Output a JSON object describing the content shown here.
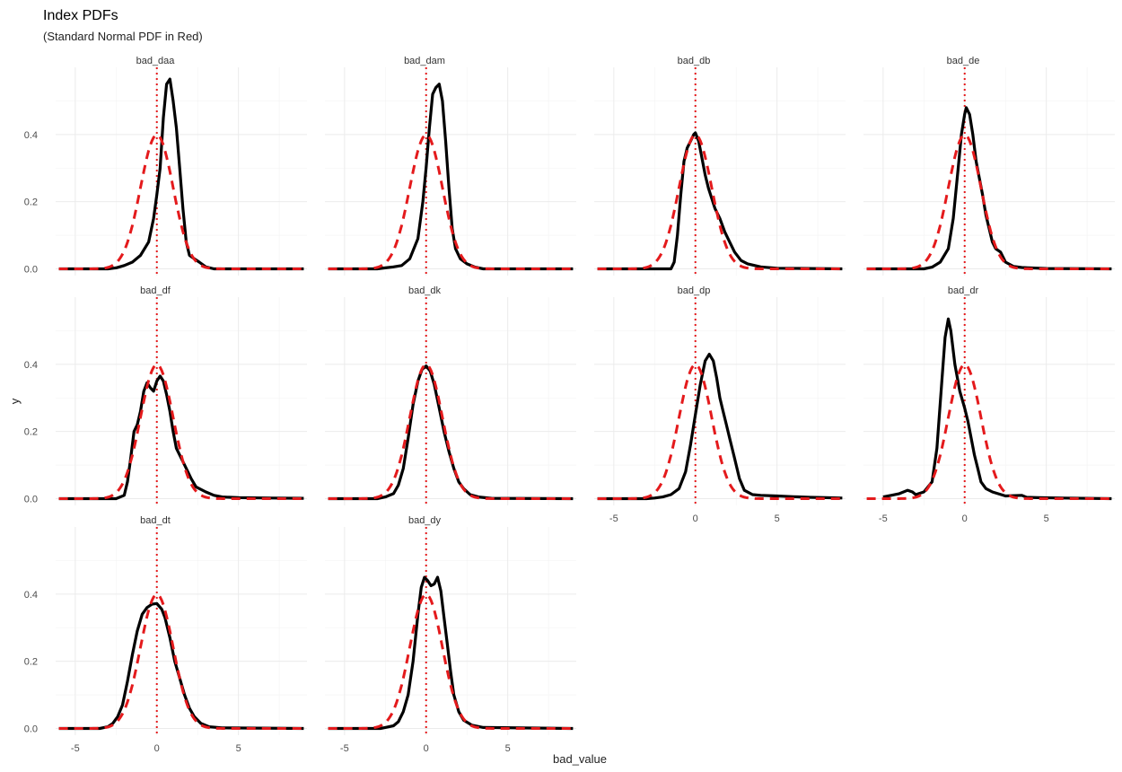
{
  "chart_data": {
    "type": "line",
    "title": "Index PDFs",
    "subtitle": "(Standard Normal PDF in Red)",
    "xlabel": "bad_value",
    "ylabel": "y",
    "xlim": [
      -6.2,
      9.2
    ],
    "ylim": [
      -0.02,
      0.6
    ],
    "x_ticks": [
      -5,
      0,
      5
    ],
    "y_ticks": [
      0.0,
      0.2,
      0.4
    ],
    "y_tick_labels": [
      "0.0",
      "0.2",
      "0.4"
    ],
    "grid": true,
    "reference_line": {
      "x": 0,
      "style": "dotted",
      "color": "#e41a1c"
    },
    "reference_curve": {
      "name": "Standard Normal PDF",
      "color": "#e41a1c",
      "style": "dashed"
    },
    "density_color": "#000000",
    "panels": [
      {
        "label": "bad_daa",
        "points": [
          [
            -6,
            0
          ],
          [
            -3,
            0
          ],
          [
            -2.5,
            0.003
          ],
          [
            -2,
            0.01
          ],
          [
            -1.5,
            0.02
          ],
          [
            -1,
            0.04
          ],
          [
            -0.5,
            0.08
          ],
          [
            -0.2,
            0.15
          ],
          [
            0,
            0.22
          ],
          [
            0.2,
            0.3
          ],
          [
            0.4,
            0.45
          ],
          [
            0.6,
            0.55
          ],
          [
            0.8,
            0.565
          ],
          [
            1.0,
            0.5
          ],
          [
            1.2,
            0.42
          ],
          [
            1.4,
            0.3
          ],
          [
            1.6,
            0.18
          ],
          [
            1.8,
            0.08
          ],
          [
            2.0,
            0.04
          ],
          [
            2.3,
            0.03
          ],
          [
            2.6,
            0.02
          ],
          [
            3,
            0.006
          ],
          [
            3.5,
            0
          ],
          [
            9,
            0
          ]
        ]
      },
      {
        "label": "bad_dam",
        "points": [
          [
            -6,
            0
          ],
          [
            -3,
            0
          ],
          [
            -2.5,
            0.003
          ],
          [
            -2,
            0.006
          ],
          [
            -1.5,
            0.01
          ],
          [
            -1,
            0.03
          ],
          [
            -0.5,
            0.09
          ],
          [
            -0.2,
            0.2
          ],
          [
            0,
            0.3
          ],
          [
            0.2,
            0.42
          ],
          [
            0.4,
            0.52
          ],
          [
            0.6,
            0.54
          ],
          [
            0.8,
            0.55
          ],
          [
            1.0,
            0.5
          ],
          [
            1.2,
            0.38
          ],
          [
            1.4,
            0.24
          ],
          [
            1.6,
            0.12
          ],
          [
            1.8,
            0.06
          ],
          [
            2.1,
            0.03
          ],
          [
            2.5,
            0.015
          ],
          [
            3,
            0.005
          ],
          [
            3.5,
            0
          ],
          [
            9,
            0
          ]
        ]
      },
      {
        "label": "bad_db",
        "points": [
          [
            -6,
            0
          ],
          [
            -1.5,
            0
          ],
          [
            -1.3,
            0.02
          ],
          [
            -1.1,
            0.1
          ],
          [
            -0.9,
            0.22
          ],
          [
            -0.7,
            0.32
          ],
          [
            -0.5,
            0.36
          ],
          [
            -0.3,
            0.38
          ],
          [
            -0.1,
            0.4
          ],
          [
            0,
            0.405
          ],
          [
            0.2,
            0.38
          ],
          [
            0.4,
            0.33
          ],
          [
            0.6,
            0.28
          ],
          [
            0.8,
            0.24
          ],
          [
            1.0,
            0.21
          ],
          [
            1.2,
            0.18
          ],
          [
            1.5,
            0.15
          ],
          [
            1.8,
            0.11
          ],
          [
            2.1,
            0.08
          ],
          [
            2.4,
            0.05
          ],
          [
            2.8,
            0.025
          ],
          [
            3.2,
            0.015
          ],
          [
            4,
            0.006
          ],
          [
            5,
            0.002
          ],
          [
            9,
            0
          ]
        ]
      },
      {
        "label": "bad_de",
        "points": [
          [
            -6,
            0
          ],
          [
            -2.5,
            0
          ],
          [
            -2,
            0.005
          ],
          [
            -1.5,
            0.02
          ],
          [
            -1,
            0.06
          ],
          [
            -0.7,
            0.15
          ],
          [
            -0.4,
            0.3
          ],
          [
            -0.2,
            0.4
          ],
          [
            0,
            0.46
          ],
          [
            0.1,
            0.48
          ],
          [
            0.3,
            0.46
          ],
          [
            0.5,
            0.4
          ],
          [
            0.7,
            0.32
          ],
          [
            0.9,
            0.27
          ],
          [
            1.1,
            0.22
          ],
          [
            1.3,
            0.16
          ],
          [
            1.5,
            0.12
          ],
          [
            1.7,
            0.08
          ],
          [
            1.9,
            0.06
          ],
          [
            2.2,
            0.05
          ],
          [
            2.5,
            0.02
          ],
          [
            3,
            0.007
          ],
          [
            3.5,
            0.004
          ],
          [
            5,
            0.001
          ],
          [
            9,
            0
          ]
        ]
      },
      {
        "label": "bad_df",
        "points": [
          [
            -6,
            0
          ],
          [
            -2.5,
            0
          ],
          [
            -2,
            0.01
          ],
          [
            -1.8,
            0.05
          ],
          [
            -1.6,
            0.12
          ],
          [
            -1.4,
            0.2
          ],
          [
            -1.2,
            0.22
          ],
          [
            -1.0,
            0.26
          ],
          [
            -0.8,
            0.32
          ],
          [
            -0.6,
            0.345
          ],
          [
            -0.4,
            0.33
          ],
          [
            -0.2,
            0.32
          ],
          [
            0,
            0.35
          ],
          [
            0.2,
            0.365
          ],
          [
            0.4,
            0.35
          ],
          [
            0.6,
            0.31
          ],
          [
            0.8,
            0.26
          ],
          [
            1.0,
            0.2
          ],
          [
            1.2,
            0.15
          ],
          [
            1.5,
            0.12
          ],
          [
            1.8,
            0.09
          ],
          [
            2.1,
            0.06
          ],
          [
            2.4,
            0.035
          ],
          [
            3,
            0.02
          ],
          [
            3.5,
            0.01
          ],
          [
            4,
            0.005
          ],
          [
            5,
            0.003
          ],
          [
            7,
            0.002
          ],
          [
            9,
            0.001
          ]
        ]
      },
      {
        "label": "bad_dk",
        "points": [
          [
            -6,
            0
          ],
          [
            -3,
            0
          ],
          [
            -2.5,
            0.005
          ],
          [
            -2,
            0.015
          ],
          [
            -1.7,
            0.04
          ],
          [
            -1.4,
            0.09
          ],
          [
            -1.1,
            0.18
          ],
          [
            -0.8,
            0.28
          ],
          [
            -0.5,
            0.35
          ],
          [
            -0.25,
            0.385
          ],
          [
            0,
            0.395
          ],
          [
            0.25,
            0.38
          ],
          [
            0.5,
            0.34
          ],
          [
            0.8,
            0.27
          ],
          [
            1.1,
            0.2
          ],
          [
            1.4,
            0.14
          ],
          [
            1.7,
            0.09
          ],
          [
            2.0,
            0.05
          ],
          [
            2.3,
            0.03
          ],
          [
            2.7,
            0.012
          ],
          [
            3.2,
            0.005
          ],
          [
            4,
            0.001
          ],
          [
            9,
            0
          ]
        ]
      },
      {
        "label": "bad_dp",
        "points": [
          [
            -6,
            0
          ],
          [
            -3,
            0
          ],
          [
            -2.5,
            0.002
          ],
          [
            -2,
            0.005
          ],
          [
            -1.5,
            0.012
          ],
          [
            -1.0,
            0.03
          ],
          [
            -0.6,
            0.08
          ],
          [
            -0.3,
            0.16
          ],
          [
            0,
            0.25
          ],
          [
            0.3,
            0.34
          ],
          [
            0.6,
            0.41
          ],
          [
            0.85,
            0.43
          ],
          [
            1.1,
            0.41
          ],
          [
            1.3,
            0.36
          ],
          [
            1.5,
            0.3
          ],
          [
            1.7,
            0.26
          ],
          [
            1.9,
            0.22
          ],
          [
            2.1,
            0.18
          ],
          [
            2.4,
            0.12
          ],
          [
            2.7,
            0.06
          ],
          [
            3,
            0.025
          ],
          [
            3.5,
            0.012
          ],
          [
            4,
            0.01
          ],
          [
            5,
            0.008
          ],
          [
            6,
            0.006
          ],
          [
            7,
            0.004
          ],
          [
            8,
            0.003
          ],
          [
            9,
            0.002
          ]
        ]
      },
      {
        "label": "bad_dr",
        "points": [
          [
            -5,
            0.005
          ],
          [
            -4.5,
            0.01
          ],
          [
            -4,
            0.015
          ],
          [
            -3.5,
            0.025
          ],
          [
            -3.2,
            0.02
          ],
          [
            -3,
            0.012
          ],
          [
            -2.5,
            0.02
          ],
          [
            -2,
            0.05
          ],
          [
            -1.7,
            0.15
          ],
          [
            -1.4,
            0.35
          ],
          [
            -1.2,
            0.48
          ],
          [
            -1.0,
            0.535
          ],
          [
            -0.85,
            0.5
          ],
          [
            -0.6,
            0.4
          ],
          [
            -0.3,
            0.32
          ],
          [
            0,
            0.27
          ],
          [
            0.2,
            0.23
          ],
          [
            0.4,
            0.18
          ],
          [
            0.6,
            0.13
          ],
          [
            0.8,
            0.09
          ],
          [
            1,
            0.05
          ],
          [
            1.3,
            0.03
          ],
          [
            1.7,
            0.02
          ],
          [
            2.5,
            0.008
          ],
          [
            3.5,
            0.01
          ],
          [
            3.8,
            0.004
          ],
          [
            4.5,
            0.003
          ],
          [
            6,
            0.002
          ],
          [
            9,
            0
          ]
        ]
      },
      {
        "label": "bad_dt",
        "points": [
          [
            -6,
            0
          ],
          [
            -3.5,
            0
          ],
          [
            -3,
            0.005
          ],
          [
            -2.7,
            0.015
          ],
          [
            -2.4,
            0.035
          ],
          [
            -2.1,
            0.07
          ],
          [
            -1.8,
            0.14
          ],
          [
            -1.5,
            0.22
          ],
          [
            -1.2,
            0.29
          ],
          [
            -0.9,
            0.34
          ],
          [
            -0.6,
            0.36
          ],
          [
            -0.3,
            0.37
          ],
          [
            0,
            0.372
          ],
          [
            0.3,
            0.355
          ],
          [
            0.5,
            0.33
          ],
          [
            0.8,
            0.27
          ],
          [
            1.1,
            0.2
          ],
          [
            1.4,
            0.15
          ],
          [
            1.7,
            0.1
          ],
          [
            2,
            0.06
          ],
          [
            2.3,
            0.035
          ],
          [
            2.7,
            0.015
          ],
          [
            3.2,
            0.005
          ],
          [
            4,
            0.002
          ],
          [
            9,
            0
          ]
        ]
      },
      {
        "label": "bad_dy",
        "points": [
          [
            -6,
            0
          ],
          [
            -2.8,
            0
          ],
          [
            -2.5,
            0.003
          ],
          [
            -2,
            0.008
          ],
          [
            -1.7,
            0.02
          ],
          [
            -1.4,
            0.05
          ],
          [
            -1.1,
            0.1
          ],
          [
            -0.8,
            0.2
          ],
          [
            -0.5,
            0.34
          ],
          [
            -0.3,
            0.42
          ],
          [
            -0.1,
            0.45
          ],
          [
            0.1,
            0.44
          ],
          [
            0.3,
            0.425
          ],
          [
            0.5,
            0.43
          ],
          [
            0.7,
            0.45
          ],
          [
            0.9,
            0.41
          ],
          [
            1.1,
            0.33
          ],
          [
            1.3,
            0.25
          ],
          [
            1.5,
            0.17
          ],
          [
            1.7,
            0.1
          ],
          [
            2,
            0.05
          ],
          [
            2.3,
            0.025
          ],
          [
            2.8,
            0.01
          ],
          [
            3.5,
            0.003
          ],
          [
            9,
            0
          ]
        ]
      }
    ]
  }
}
